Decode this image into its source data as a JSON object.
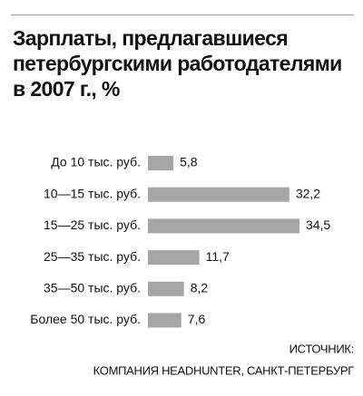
{
  "chart_data": {
    "type": "bar",
    "orientation": "horizontal",
    "title": "Зарплаты, предлагавшиеся петербургскими работодателями в 2007 г., %",
    "categories": [
      "До 10 тыс. руб.",
      "10—15 тыс. руб.",
      "15—25 тыс. руб.",
      "25—35 тыс. руб.",
      "35—50 тыс. руб.",
      "Более 50 тыс. руб."
    ],
    "values": [
      5.8,
      32.2,
      34.5,
      11.7,
      8.2,
      7.6
    ],
    "value_labels": [
      "5,8",
      "32,2",
      "34,5",
      "11,7",
      "8,2",
      "7,6"
    ],
    "color": "#a6a6a6",
    "source": [
      "ИСТОЧНИК:",
      "КОМПАНИЯ HEADHUNTER, САНКТ-ПЕТЕРБУРГ"
    ]
  }
}
